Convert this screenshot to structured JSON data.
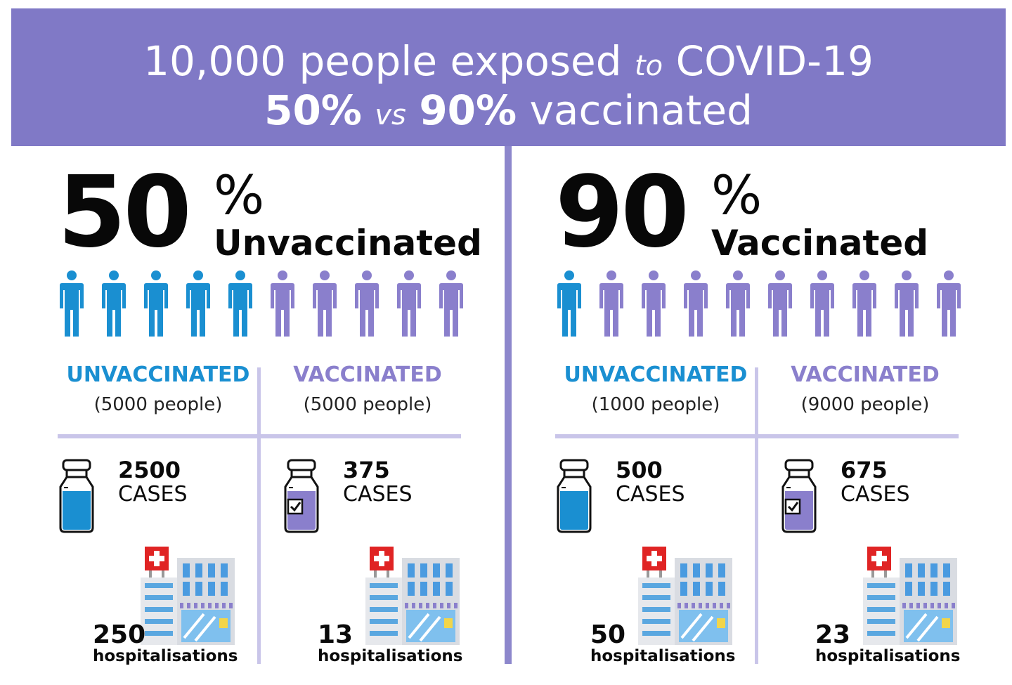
{
  "header": {
    "line1_a": "10,000 people exposed",
    "line1_to": "to",
    "line1_b": "COVID-19",
    "line2_a": "50%",
    "line2_vs": "vs",
    "line2_b": "90%",
    "line2_c": "vaccinated"
  },
  "colors": {
    "header_bg": "#8079c6",
    "unvaccinated": "#1a8fd1",
    "vaccinated": "#8a7fcc",
    "divider": "#8d87cc",
    "light_divider": "#c9c5e9",
    "hospital_cross": "#e02424"
  },
  "scenarios": [
    {
      "big_number": "50",
      "percent_sign": "%",
      "label": "Unvaccinated",
      "people_total": 10,
      "people_unvaccinated": 5,
      "groups": [
        {
          "title": "UNVACCINATED",
          "subtitle": "(5000 people)",
          "vial_icon": "empty-vial-icon",
          "cases_number": "2500",
          "cases_label": "CASES",
          "hosp_number": "250",
          "hosp_label": "hospitalisations"
        },
        {
          "title": "VACCINATED",
          "subtitle": "(5000 people)",
          "vial_icon": "checked-vial-icon",
          "cases_number": "375",
          "cases_label": "CASES",
          "hosp_number": "13",
          "hosp_label": "hospitalisations"
        }
      ]
    },
    {
      "big_number": "90",
      "percent_sign": "%",
      "label": "Vaccinated",
      "people_total": 10,
      "people_unvaccinated": 1,
      "groups": [
        {
          "title": "UNVACCINATED",
          "subtitle": "(1000 people)",
          "vial_icon": "empty-vial-icon",
          "cases_number": "500",
          "cases_label": "CASES",
          "hosp_number": "50",
          "hosp_label": "hospitalisations"
        },
        {
          "title": "VACCINATED",
          "subtitle": "(9000 people)",
          "vial_icon": "checked-vial-icon",
          "cases_number": "675",
          "cases_label": "CASES",
          "hosp_number": "23",
          "hosp_label": "hospitalisations"
        }
      ]
    }
  ]
}
